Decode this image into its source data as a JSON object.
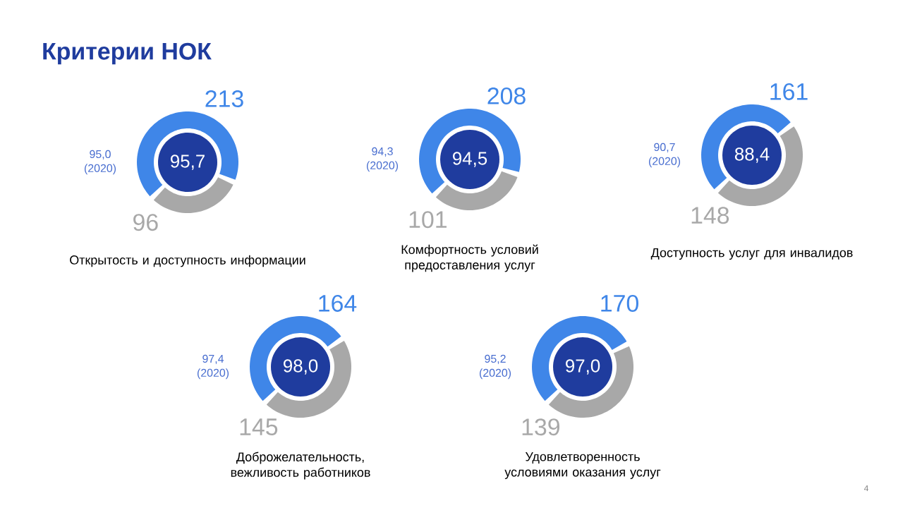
{
  "chart_data": [
    {
      "type": "donut",
      "title": "Открытость и доступность информации",
      "categories": [
        null,
        null
      ],
      "values": [
        213,
        96
      ],
      "colors": [
        "#3f86e8",
        "#a8a8a8"
      ],
      "data_labels": true,
      "annotations": [
        "95,7",
        "95,0 (2020)",
        "Критерии НОК"
      ]
    },
    {
      "type": "donut",
      "title": "Комфортность условий предоставления услуг",
      "categories": [
        null,
        null
      ],
      "values": [
        208,
        101
      ],
      "colors": [
        "#3f86e8",
        "#a8a8a8"
      ],
      "data_labels": true,
      "annotations": [
        "94,5",
        "94,3 (2020)"
      ]
    },
    {
      "type": "donut",
      "title": "Доступность услуг для инвалидов",
      "categories": [
        null,
        null
      ],
      "values": [
        161,
        148
      ],
      "colors": [
        "#3f86e8",
        "#a8a8a8"
      ],
      "data_labels": true,
      "annotations": [
        "88,4",
        "90,7 (2020)"
      ]
    },
    {
      "type": "donut",
      "title": "Доброжелательность, вежливость работников",
      "categories": [
        null,
        null
      ],
      "values": [
        164,
        145
      ],
      "colors": [
        "#3f86e8",
        "#a8a8a8"
      ],
      "data_labels": true,
      "annotations": [
        "98,0",
        "97,4 (2020)"
      ]
    },
    {
      "type": "donut",
      "title": "Удовлетворенность условиями оказания услуг",
      "categories": [
        null,
        null
      ],
      "values": [
        170,
        139
      ],
      "colors": [
        "#3f86e8",
        "#a8a8a8"
      ],
      "data_labels": true,
      "annotations": [
        "97,0",
        "95,2 (2020)",
        "4"
      ]
    }
  ]
}
